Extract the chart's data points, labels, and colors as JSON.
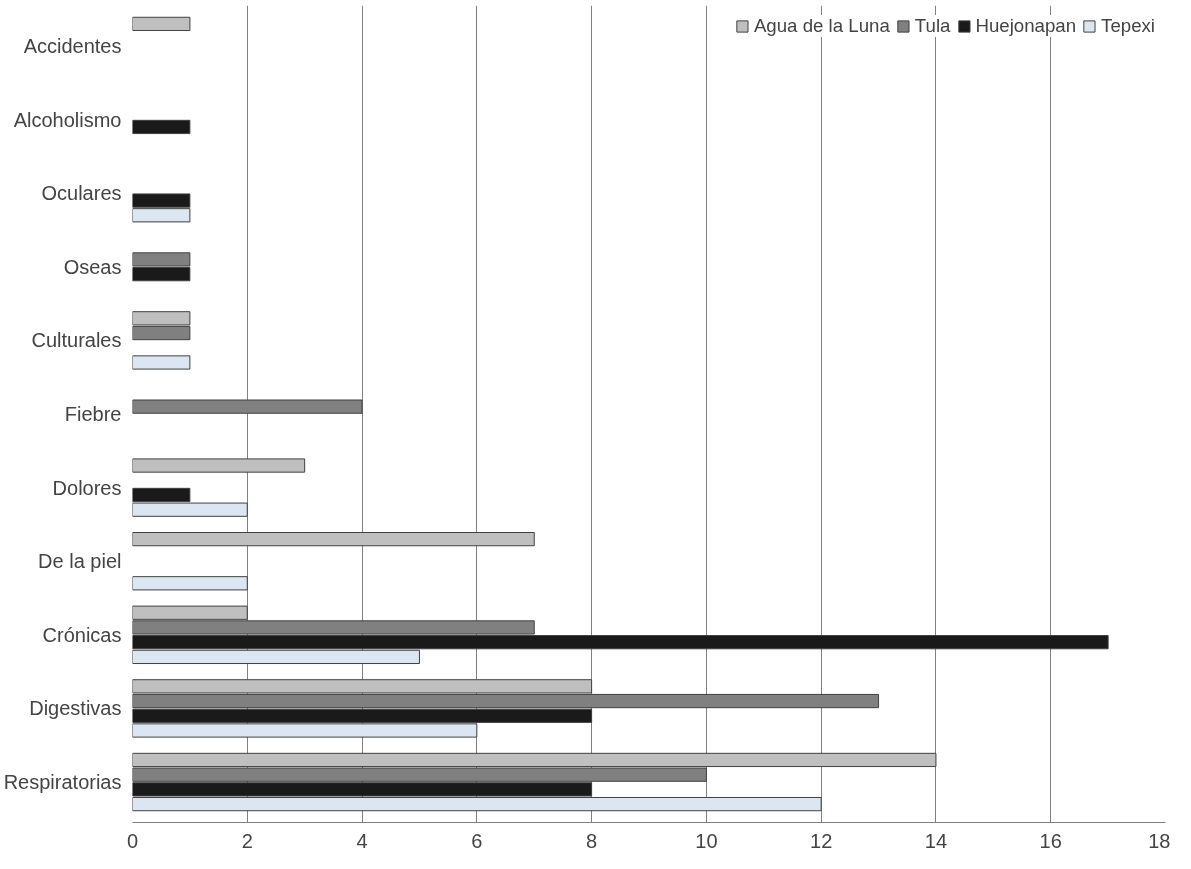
{
  "chart_data": {
    "type": "bar",
    "orientation": "horizontal",
    "categories": [
      "Accidentes",
      "Alcoholismo",
      "Oculares",
      "Oseas",
      "Culturales",
      "Fiebre",
      "Dolores",
      "De la piel",
      "Crónicas",
      "Digestivas",
      "Respiratorias"
    ],
    "series": [
      {
        "name": "Agua de la Luna",
        "color": "#bfbfbf",
        "values": [
          1,
          null,
          null,
          null,
          1,
          null,
          3,
          7,
          2,
          8,
          14
        ]
      },
      {
        "name": "Tula",
        "color": "#808080",
        "values": [
          null,
          null,
          null,
          1,
          1,
          4,
          null,
          null,
          7,
          13,
          10
        ]
      },
      {
        "name": "Huejonapan",
        "color": "#1a1a1a",
        "values": [
          null,
          1,
          1,
          1,
          null,
          null,
          1,
          null,
          17,
          8,
          8
        ]
      },
      {
        "name": "Tepexi",
        "color": "#dce6f2",
        "values": [
          null,
          null,
          1,
          null,
          1,
          null,
          2,
          2,
          5,
          6,
          12
        ]
      }
    ],
    "xlim": [
      0,
      18
    ],
    "xticks": [
      0,
      2,
      4,
      6,
      8,
      10,
      12,
      14,
      16,
      18
    ],
    "grid": "x",
    "legend": "top right"
  }
}
